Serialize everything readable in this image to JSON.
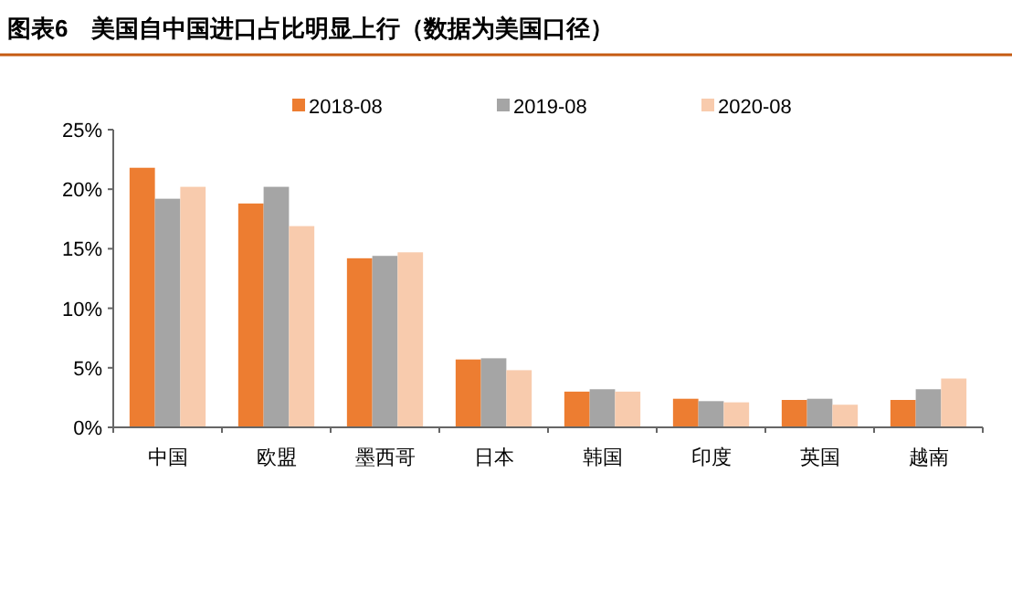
{
  "chart_data": {
    "type": "bar",
    "title": "图表6　美国自中国进口占比明显上行（数据为美国口径）",
    "categories": [
      "中国",
      "欧盟",
      "墨西哥",
      "日本",
      "韩国",
      "印度",
      "英国",
      "越南"
    ],
    "series": [
      {
        "name": "2018-08",
        "color": "#ed7d31",
        "values": [
          21.8,
          18.8,
          14.2,
          5.7,
          3.0,
          2.4,
          2.3,
          2.3
        ]
      },
      {
        "name": "2019-08",
        "color": "#a5a5a5",
        "values": [
          19.2,
          20.2,
          14.4,
          5.8,
          3.2,
          2.2,
          2.4,
          3.2
        ]
      },
      {
        "name": "2020-08",
        "color": "#f8cbad",
        "values": [
          20.2,
          16.9,
          14.7,
          4.8,
          3.0,
          2.1,
          1.9,
          4.1
        ]
      }
    ],
    "ylim": [
      0,
      25
    ],
    "yticks": [
      {
        "value": 0,
        "label": "0%"
      },
      {
        "value": 5,
        "label": "5%"
      },
      {
        "value": 10,
        "label": "10%"
      },
      {
        "value": 15,
        "label": "15%"
      },
      {
        "value": 20,
        "label": "20%"
      },
      {
        "value": 25,
        "label": "25%"
      }
    ],
    "legend": "top",
    "grid": false
  }
}
